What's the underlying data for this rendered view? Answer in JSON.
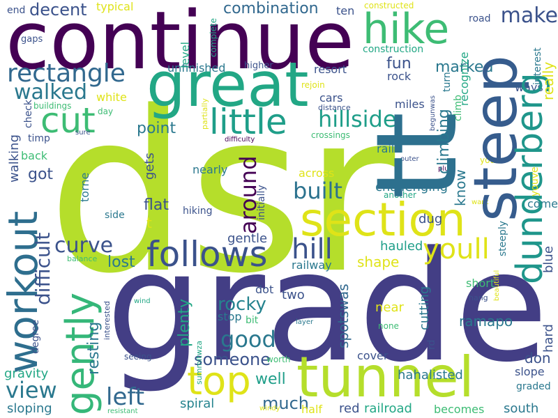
{
  "words": [
    {
      "text": "dsr",
      "color": "#b5de2b"
    },
    {
      "text": "grade",
      "color": "#433e85"
    },
    {
      "text": "continue",
      "color": "#440154"
    },
    {
      "text": "great",
      "color": "#22a785"
    },
    {
      "text": "tunnel",
      "color": "#b5de2b"
    },
    {
      "text": "tt",
      "color": "#2d708e"
    },
    {
      "text": "steep",
      "color": "#365c8d"
    },
    {
      "text": "dunderberg",
      "color": "#1f968b"
    },
    {
      "text": "section",
      "color": "#dfe318"
    },
    {
      "text": "hike",
      "color": "#3dbc74"
    },
    {
      "text": "follows",
      "color": "#3b528b"
    },
    {
      "text": "workout",
      "color": "#2e6e8e"
    },
    {
      "text": "gently",
      "color": "#35b779"
    },
    {
      "text": "little",
      "color": "#1f9e89"
    },
    {
      "text": "top",
      "color": "#dfe318"
    },
    {
      "text": "rectangle",
      "color": "#31688e"
    },
    {
      "text": "cut",
      "color": "#3dbc74"
    },
    {
      "text": "walked",
      "color": "#2a788e"
    },
    {
      "text": "hill",
      "color": "#3b528b"
    },
    {
      "text": "youll",
      "color": "#dfe318"
    },
    {
      "text": "around",
      "color": "#440154"
    },
    {
      "text": "hillside",
      "color": "#1f9e89"
    },
    {
      "text": "built",
      "color": "#2c728e"
    },
    {
      "text": "curve",
      "color": "#3b528b"
    },
    {
      "text": "left",
      "color": "#31688e"
    },
    {
      "text": "view",
      "color": "#2a788e"
    },
    {
      "text": "good",
      "color": "#2a788e"
    },
    {
      "text": "difficult",
      "color": "#3b528b"
    },
    {
      "text": "rocky",
      "color": "#25838e"
    },
    {
      "text": "someone",
      "color": "#3b528b"
    },
    {
      "text": "much",
      "color": "#31688e"
    },
    {
      "text": "well",
      "color": "#1f9e89"
    },
    {
      "text": "plenty",
      "color": "#22a785"
    },
    {
      "text": "resting",
      "color": "#2a788e"
    },
    {
      "text": "spotswas",
      "color": "#31688e"
    },
    {
      "text": "decent",
      "color": "#3b528b"
    },
    {
      "text": "combination",
      "color": "#31688e"
    },
    {
      "text": "make",
      "color": "#3b528b"
    },
    {
      "text": "marked",
      "color": "#2a788e"
    },
    {
      "text": "point",
      "color": "#2a788e"
    },
    {
      "text": "fun",
      "color": "#3b528b"
    },
    {
      "text": "flat",
      "color": "#3b528b"
    },
    {
      "text": "gets",
      "color": "#3b528b"
    },
    {
      "text": "walking",
      "color": "#3b528b"
    },
    {
      "text": "got",
      "color": "#3b528b"
    },
    {
      "text": "lost",
      "color": "#2a788e"
    },
    {
      "text": "gentle",
      "color": "#3b528b"
    },
    {
      "text": "hauled",
      "color": "#1f9e89"
    },
    {
      "text": "shape",
      "color": "#dfe318"
    },
    {
      "text": "challenging",
      "color": "#2a788e"
    },
    {
      "text": "climbing",
      "color": "#2a788e"
    },
    {
      "text": "really",
      "color": "#dfe318"
    },
    {
      "text": "know",
      "color": "#2a788e"
    },
    {
      "text": "gravity",
      "color": "#22a785"
    },
    {
      "text": "sloping",
      "color": "#2a788e"
    },
    {
      "text": "spiral",
      "color": "#25838e"
    },
    {
      "text": "half",
      "color": "#dfe318"
    },
    {
      "text": "red",
      "color": "#3b528b"
    },
    {
      "text": "railroad",
      "color": "#22a785"
    },
    {
      "text": "becomes",
      "color": "#3dbc74"
    },
    {
      "text": "south",
      "color": "#2a788e"
    },
    {
      "text": "hahalisted",
      "color": "#2a788e"
    },
    {
      "text": "cover",
      "color": "#3b528b"
    },
    {
      "text": "don",
      "color": "#3b528b"
    },
    {
      "text": "slope",
      "color": "#3b528b"
    },
    {
      "text": "graded",
      "color": "#2a788e"
    },
    {
      "text": "hard",
      "color": "#3b528b"
    },
    {
      "text": "two",
      "color": "#3b528b"
    },
    {
      "text": "dot",
      "color": "#3b528b"
    },
    {
      "text": "stop",
      "color": "#2a788e"
    },
    {
      "text": "bit",
      "color": "#3dbc74"
    },
    {
      "text": "near",
      "color": "#dfe318"
    },
    {
      "text": "cutting",
      "color": "#2a788e"
    },
    {
      "text": "ramapo",
      "color": "#2a788e"
    },
    {
      "text": "short",
      "color": "#3dbc74"
    },
    {
      "text": "railway",
      "color": "#2a788e"
    },
    {
      "text": "blue",
      "color": "#3b528b"
    },
    {
      "text": "steeply",
      "color": "#2a788e"
    },
    {
      "text": "come",
      "color": "#2a788e"
    },
    {
      "text": "youve",
      "color": "#dfe318"
    },
    {
      "text": "dug",
      "color": "#3b528b"
    },
    {
      "text": "across",
      "color": "#dfe318"
    },
    {
      "text": "rail",
      "color": "#2a788e"
    },
    {
      "text": "miles",
      "color": "#3b528b"
    },
    {
      "text": "rock",
      "color": "#3b528b"
    },
    {
      "text": "resort",
      "color": "#3b528b"
    },
    {
      "text": "cars",
      "color": "#3b528b"
    },
    {
      "text": "ways",
      "color": "#3b528b"
    },
    {
      "text": "interest",
      "color": "#2a788e"
    },
    {
      "text": "recognize",
      "color": "#22a785"
    },
    {
      "text": "turn",
      "color": "#2a788e"
    },
    {
      "text": "climb",
      "color": "#3dbc74"
    },
    {
      "text": "road",
      "color": "#3b528b"
    },
    {
      "text": "ten",
      "color": "#3b528b"
    },
    {
      "text": "end",
      "color": "#3b528b"
    },
    {
      "text": "typical",
      "color": "#dfe318"
    },
    {
      "text": "constructed",
      "color": "#dfe318"
    },
    {
      "text": "construction",
      "color": "#22a785"
    },
    {
      "text": "level",
      "color": "#22a785"
    },
    {
      "text": "complete",
      "color": "#22a785"
    },
    {
      "text": "unfinished",
      "color": "#2a788e"
    },
    {
      "text": "higher",
      "color": "#3b528b"
    },
    {
      "text": "gaps",
      "color": "#3b528b"
    },
    {
      "text": "white",
      "color": "#dfe318"
    },
    {
      "text": "day",
      "color": "#3dbc74"
    },
    {
      "text": "buildings",
      "color": "#3dbc74"
    },
    {
      "text": "check",
      "color": "#3b528b"
    },
    {
      "text": "timp",
      "color": "#3b528b"
    },
    {
      "text": "back",
      "color": "#3dbc74"
    },
    {
      "text": "partially",
      "color": "#dfe318"
    },
    {
      "text": "rejoin",
      "color": "#dfe318"
    },
    {
      "text": "distance",
      "color": "#3b528b"
    },
    {
      "text": "crossings",
      "color": "#3dbc74"
    },
    {
      "text": "difficulty",
      "color": "#440154"
    },
    {
      "text": "sure",
      "color": "#3b528b"
    },
    {
      "text": "begunwas",
      "color": "#3b528b"
    },
    {
      "text": "outer",
      "color": "#3b528b"
    },
    {
      "text": "plus",
      "color": "#440154"
    },
    {
      "text": "youre",
      "color": "#dfe318"
    },
    {
      "text": "initially",
      "color": "#3b528b"
    },
    {
      "text": "nearly",
      "color": "#2a788e"
    },
    {
      "text": "another",
      "color": "#22a785"
    },
    {
      "text": "want",
      "color": "#dfe318"
    },
    {
      "text": "torne",
      "color": "#2a788e"
    },
    {
      "text": "side",
      "color": "#2a788e"
    },
    {
      "text": "hiking",
      "color": "#3b528b"
    },
    {
      "text": "t",
      "color": "#dfe318"
    },
    {
      "text": "balance",
      "color": "#3dbc74"
    },
    {
      "text": "degree",
      "color": "#3b528b"
    },
    {
      "text": "wind",
      "color": "#22a785"
    },
    {
      "text": "interested",
      "color": "#3b528b"
    },
    {
      "text": "seeing",
      "color": "#3b528b"
    },
    {
      "text": "summitwza",
      "color": "#22a785"
    },
    {
      "text": "worth",
      "color": "#3dbc74"
    },
    {
      "text": "windy",
      "color": "#dfe318"
    },
    {
      "text": "resistant",
      "color": "#3dbc74"
    },
    {
      "text": "layer",
      "color": "#2a788e"
    },
    {
      "text": "none",
      "color": "#3dbc74"
    },
    {
      "text": "hang",
      "color": "#3b528b"
    },
    {
      "text": "beautiful",
      "color": "#dfe318"
    },
    {
      "text": "rd",
      "color": "#3b528b"
    }
  ]
}
